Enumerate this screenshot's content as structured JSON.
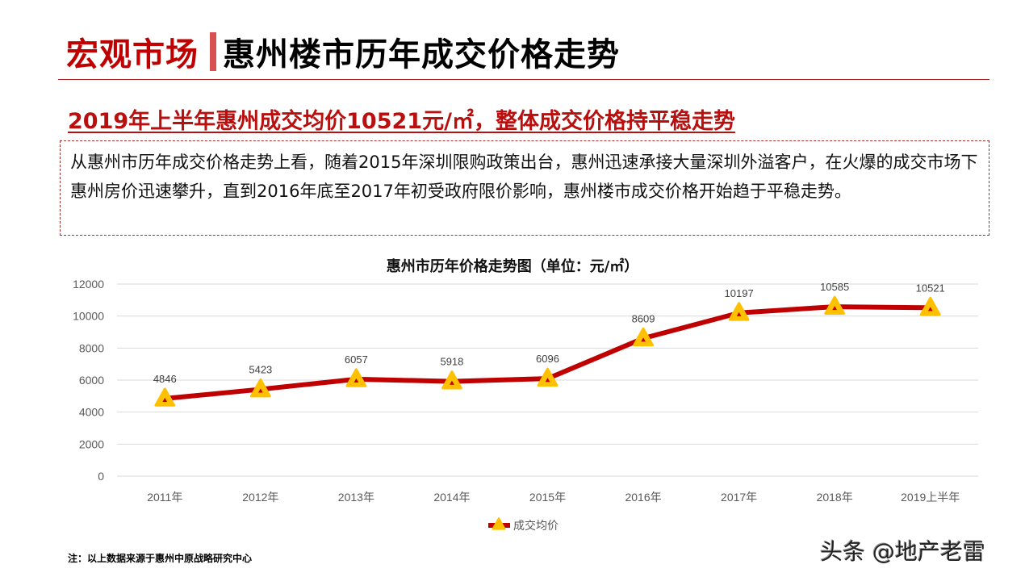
{
  "header": {
    "section": "宏观市场",
    "title": "惠州楼市历年成交价格走势"
  },
  "subtitle": "2019年上半年惠州成交均价10521元/㎡，整体成交价格持平稳走势",
  "description": "从惠州市历年成交价格走势上看，随着2015年深圳限购政策出台，惠州迅速承接大量深圳外溢客户，在火爆的成交市场下惠州房价迅速攀升，直到2016年底至2017年初受政府限价影响，惠州楼市成交价格开始趋于平稳走势。",
  "footnote": "注：以上数据来源于惠州中原战略研究中心",
  "watermark": "头条 @地产老雷",
  "colors": {
    "accent": "#c00000",
    "line": "#c00000",
    "marker": "#ffc000",
    "grid": "#d9d9d9",
    "axis_text": "#595959"
  },
  "chart_data": {
    "type": "line",
    "title": "惠州市历年价格走势图（单位：元/㎡）",
    "xlabel": "",
    "ylabel": "",
    "categories": [
      "2011年",
      "2012年",
      "2013年",
      "2014年",
      "2015年",
      "2016年",
      "2017年",
      "2018年",
      "2019上半年"
    ],
    "series": [
      {
        "name": "成交均价",
        "values": [
          4846,
          5423,
          6057,
          5918,
          6096,
          8609,
          10197,
          10585,
          10521
        ]
      }
    ],
    "ylim": [
      0,
      12000
    ],
    "yticks": [
      0,
      2000,
      4000,
      6000,
      8000,
      10000,
      12000
    ],
    "grid": true,
    "legend_position": "bottom",
    "data_labels": true,
    "marker": "triangle"
  }
}
